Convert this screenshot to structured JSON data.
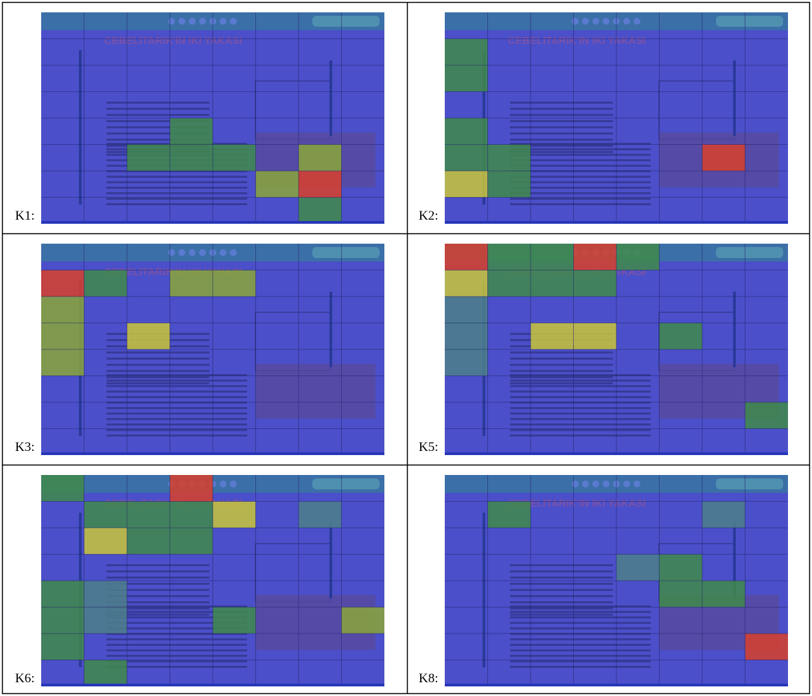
{
  "screen": {
    "title": "CEBELITARIK'IN IKI YAKASI"
  },
  "panels": [
    {
      "label": "K1:"
    },
    {
      "label": "K2:"
    },
    {
      "label": "K3:"
    },
    {
      "label": "K5:"
    },
    {
      "label": "K6:"
    },
    {
      "label": "K8:"
    }
  ]
}
